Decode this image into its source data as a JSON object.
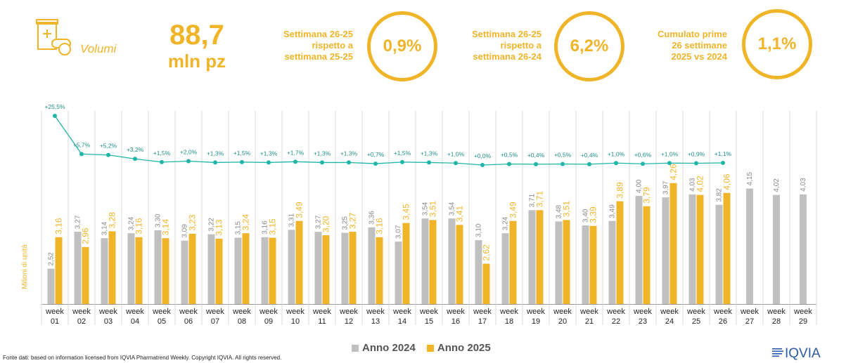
{
  "header": {
    "volumi_label": "Volumi",
    "value": "88,7",
    "unit": "mln pz"
  },
  "kpis": [
    {
      "label_lines": [
        "Settimana 26-25",
        "rispetto a",
        "settimana 25-25"
      ],
      "value": "0,9%"
    },
    {
      "label_lines": [
        "Settimana 26-25",
        "rispetto a",
        "settimana 26-24"
      ],
      "value": "6,2%"
    },
    {
      "label_lines": [
        "Cumulato prime",
        "26 settimane",
        "2025 vs 2024"
      ],
      "value": "1,1%"
    }
  ],
  "colors": {
    "accent": "#f0b429",
    "gray_bar": "#c0c0c0",
    "line": "#1fb5a8"
  },
  "chart_data": {
    "type": "bar",
    "ylabel": "Milioni di unità",
    "categories": [
      "week 01",
      "week 02",
      "week 03",
      "week 04",
      "week 05",
      "week 06",
      "week 07",
      "week 08",
      "week 09",
      "week 10",
      "week 11",
      "week 12",
      "week 13",
      "week 14",
      "week 15",
      "week 16",
      "week 17",
      "week 18",
      "week 19",
      "week 20",
      "week 21",
      "week 22",
      "week 23",
      "week 24",
      "week 25",
      "week 26",
      "week 27",
      "week 28",
      "week 29"
    ],
    "series": [
      {
        "name": "Anno 2024",
        "values": [
          2.52,
          3.27,
          3.14,
          3.24,
          3.3,
          3.09,
          3.22,
          3.15,
          3.16,
          3.31,
          3.27,
          3.25,
          3.36,
          3.07,
          3.54,
          3.54,
          3.1,
          3.24,
          3.71,
          3.48,
          3.4,
          3.49,
          4.0,
          3.97,
          4.03,
          3.82,
          4.15,
          4.02,
          4.03
        ],
        "labels": [
          "2,52",
          "3,27",
          "3,14",
          "3,24",
          "3,30",
          "3,09",
          "3,22",
          "3,15",
          "3,16",
          "3,31",
          "3,27",
          "3,25",
          "3,36",
          "3,07",
          "3,54",
          "3,54",
          "3,10",
          "3,24",
          "3,71",
          "3,48",
          "3,40",
          "3,49",
          "4,00",
          "3,97",
          "4,03",
          "3,82",
          "4,15",
          "4,02",
          "4,03"
        ]
      },
      {
        "name": "Anno 2025",
        "values": [
          3.16,
          2.96,
          3.28,
          3.16,
          3.14,
          3.23,
          3.13,
          3.24,
          3.15,
          3.49,
          3.2,
          3.27,
          3.16,
          3.45,
          3.51,
          3.41,
          2.62,
          3.49,
          3.71,
          3.51,
          3.39,
          3.89,
          3.79,
          4.26,
          4.02,
          4.06,
          null,
          null,
          null
        ],
        "labels": [
          "3,16",
          "2,96",
          "3,28",
          "3,16",
          "3,14",
          "3,23",
          "3,13",
          "3,24",
          "3,15",
          "3,49",
          "3,20",
          "3,27",
          "3,16",
          "3,45",
          "3,51",
          "3,41",
          "2,62",
          "3,49",
          "3,71",
          "3,51",
          "3,39",
          "3,89",
          "3,79",
          "4,26",
          "4,02",
          "4,06",
          null,
          null,
          null
        ]
      }
    ],
    "growth_line": {
      "values": [
        25.5,
        5.7,
        5.2,
        3.2,
        1.5,
        2.0,
        1.3,
        1.5,
        1.3,
        1.7,
        1.3,
        1.3,
        0.7,
        1.5,
        1.3,
        1.0,
        0.0,
        0.5,
        0.4,
        0.5,
        0.4,
        1.0,
        0.6,
        1.0,
        0.9,
        1.1
      ],
      "labels": [
        "+25,5%",
        "+5,7%",
        "+5,2%",
        "+3,2%",
        "+1,5%",
        "+2,0%",
        "+1,3%",
        "+1,5%",
        "+1,3%",
        "+1,7%",
        "+1,3%",
        "+1,3%",
        "+0,7%",
        "+1,5%",
        "+1,3%",
        "+1,0%",
        "+0,0%",
        "+0,5%",
        "+0,4%",
        "+0,5%",
        "+0,4%",
        "+1,0%",
        "+0,6%",
        "+1,0%",
        "+0,9%",
        "+1,1%"
      ]
    }
  },
  "legend": {
    "items": [
      "Anno 2024",
      "Anno 2025"
    ]
  },
  "footer": {
    "source": "Fonte dati: based on information licensed from IQVIA Pharmatrend Weekly. Copyright IQVIA. All rights reserved.",
    "logo_text": "IQVIA"
  }
}
